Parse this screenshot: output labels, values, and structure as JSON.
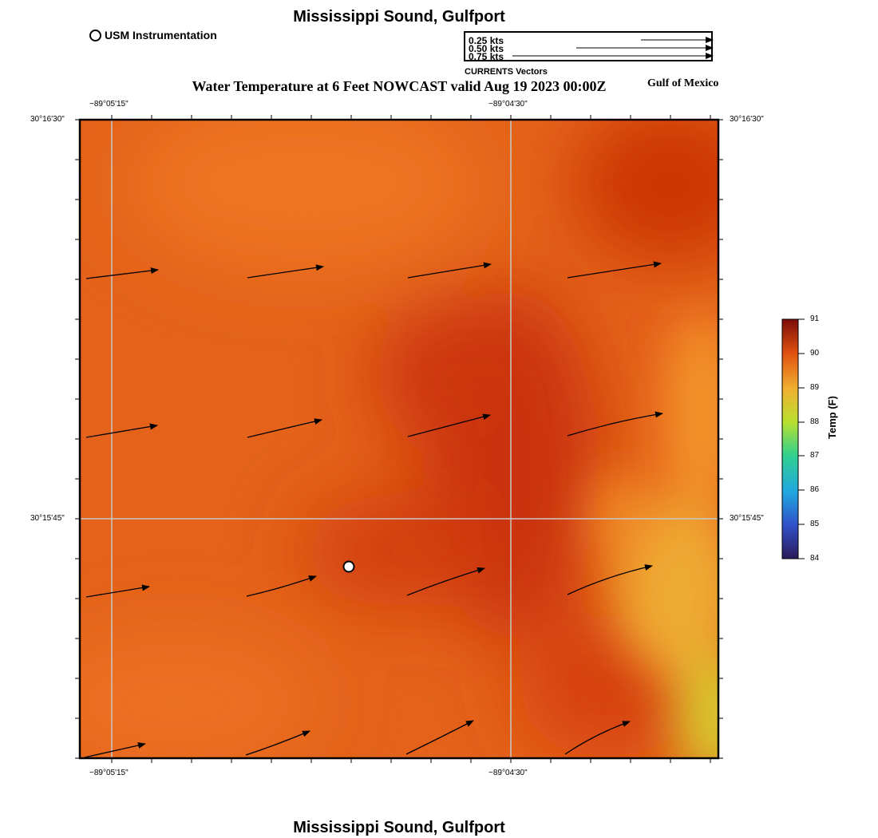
{
  "header": {
    "top_title": "Mississippi Sound, Gulfport",
    "map_title": "Water Temperature at 6 Feet NOWCAST valid Aug 19 2023 00:00Z",
    "region": "Gulf of Mexico",
    "bottom_title": "Mississippi Sound, Gulfport"
  },
  "legend": {
    "station_label": "USM Instrumentation",
    "vectors_caption": "CURRENTS Vectors",
    "vector_scales": [
      "0.25 kts",
      "0.50 kts",
      "0.75 kts"
    ]
  },
  "axes": {
    "lon_labels": [
      "−89°05'15\"",
      "−89°04'30\""
    ],
    "lat_labels": [
      "30°16'30\"",
      "30°15'45\""
    ]
  },
  "colorbar": {
    "label": "Temp (F)",
    "ticks": [
      "91",
      "90",
      "89",
      "88",
      "87",
      "86",
      "85",
      "84"
    ],
    "min": 84,
    "max": 91
  },
  "colors": {
    "warm_orange": "#e86a1e",
    "deep_red_orange": "#c83008",
    "amber": "#f4a030",
    "yellow": "#d8c830"
  }
}
